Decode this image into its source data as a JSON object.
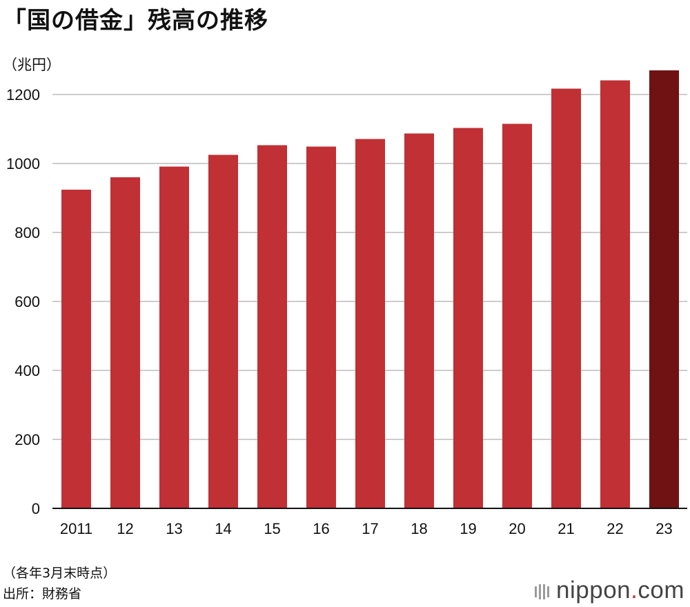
{
  "title": "「国の借金」残高の推移",
  "unit_label": "（兆円）",
  "notes": [
    "（各年3月末時点）",
    "出所：財務省"
  ],
  "logo": {
    "name": "nippon",
    "dot": ".",
    "suffix": "com"
  },
  "colors": {
    "bar": "#c03034",
    "highlight": "#6e1213",
    "grid": "#cccccc",
    "axis": "#111111"
  },
  "chart_data": {
    "type": "bar",
    "categories": [
      "2011",
      "12",
      "13",
      "14",
      "15",
      "16",
      "17",
      "18",
      "19",
      "20",
      "21",
      "22",
      "23"
    ],
    "values": [
      924,
      960,
      991,
      1025,
      1053,
      1049,
      1071,
      1087,
      1103,
      1115,
      1217,
      1241,
      1270
    ],
    "highlight_index": 12,
    "yticks": [
      0,
      200,
      400,
      600,
      800,
      1000,
      1200
    ],
    "ylim": [
      0,
      1300
    ],
    "ylabel": "（兆円）",
    "grid": true
  }
}
